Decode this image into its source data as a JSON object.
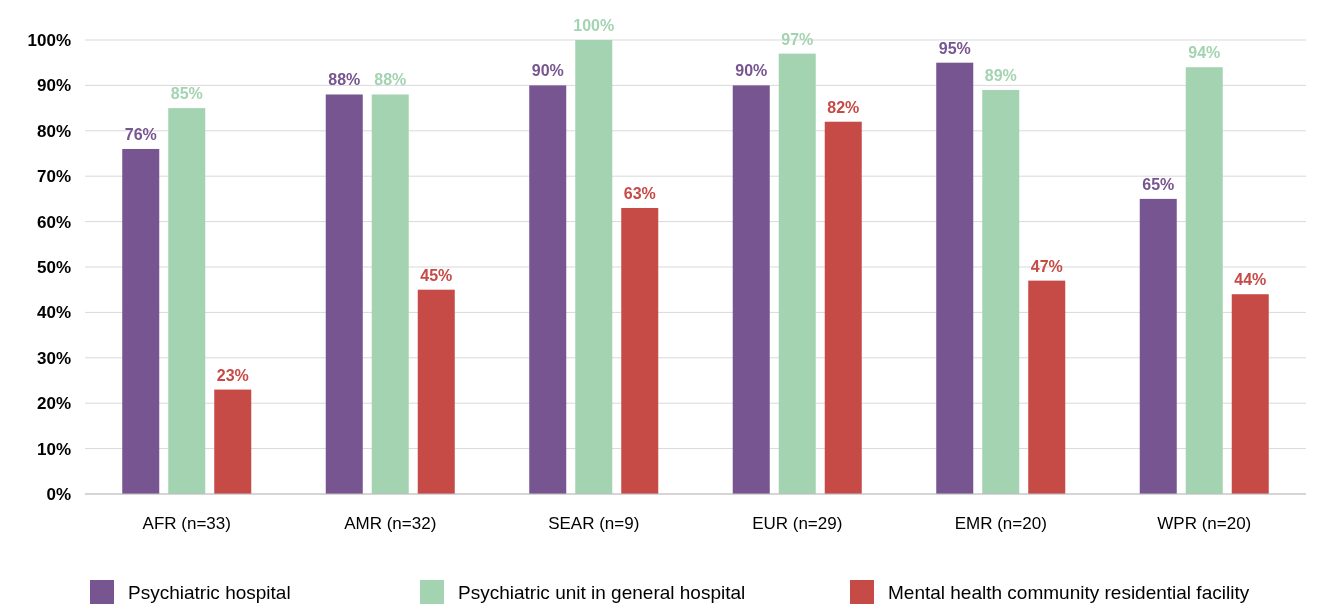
{
  "chart_data": {
    "type": "bar",
    "categories": [
      "AFR (n=33)",
      "AMR (n=32)",
      "SEAR (n=9)",
      "EUR (n=29)",
      "EMR (n=20)",
      "WPR (n=20)"
    ],
    "series": [
      {
        "name": "Psychiatric hospital",
        "color": "#775590",
        "values": [
          76,
          88,
          90,
          90,
          95,
          65
        ],
        "value_labels": [
          "76%",
          "88%",
          "90%",
          "90%",
          "95%",
          "65%"
        ]
      },
      {
        "name": "Psychiatric unit in general hospital",
        "color": "#a3d3b1",
        "values": [
          85,
          88,
          100,
          97,
          89,
          94
        ],
        "value_labels": [
          "85%",
          "88%",
          "100%",
          "97%",
          "89%",
          "94%"
        ]
      },
      {
        "name": "Mental health community residential facility",
        "color": "#c64a46",
        "values": [
          23,
          45,
          63,
          82,
          47,
          44
        ],
        "value_labels": [
          "23%",
          "45%",
          "63%",
          "82%",
          "47%",
          "44%"
        ]
      }
    ],
    "ylim": [
      0,
      100
    ],
    "yticks": [
      {
        "value": 0,
        "label": "0%"
      },
      {
        "value": 10,
        "label": "10%"
      },
      {
        "value": 20,
        "label": "20%"
      },
      {
        "value": 30,
        "label": "30%"
      },
      {
        "value": 40,
        "label": "40%"
      },
      {
        "value": 50,
        "label": "50%"
      },
      {
        "value": 60,
        "label": "60%"
      },
      {
        "value": 70,
        "label": "70%"
      },
      {
        "value": 80,
        "label": "80%"
      },
      {
        "value": 90,
        "label": "90%"
      },
      {
        "value": 100,
        "label": "100%"
      }
    ],
    "grid": "y",
    "legend": "bottom"
  }
}
